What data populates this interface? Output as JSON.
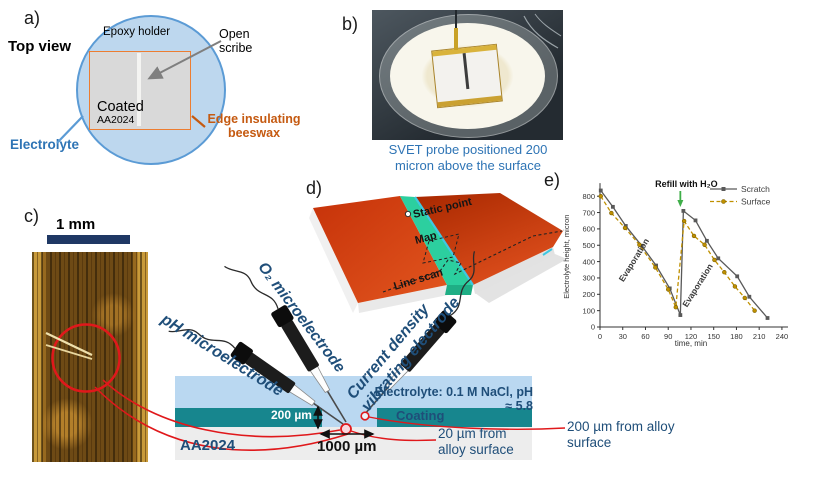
{
  "figure": {
    "panel_a": {
      "label": "a)",
      "title": "Top view",
      "epoxy": "Epoxy holder",
      "scribe": "Open scribe",
      "coated_line1": "Coated",
      "coated_line2": "AA2024",
      "electrolyte": "Electrolyte",
      "beeswax": "Edge insulating beeswax"
    },
    "panel_b": {
      "label": "b)",
      "caption": "SVET probe positioned 200 micron above the surface"
    },
    "panel_c": {
      "label": "c)",
      "scalebar": "1 mm"
    },
    "panel_d": {
      "label": "d)",
      "static_point": "Static point",
      "map": "Map",
      "line_scan": "Line scan"
    },
    "section": {
      "ph": "pH microelectrode",
      "o2": "O₂ microelectrode",
      "vib1": "Current density",
      "vib2": "vibrating electrode",
      "electrolyte": "Electrolyte: 0.1 M NaCl, pH ≈ 5.8",
      "coating": "Coating",
      "h200": "200 µm",
      "w1000": "1000 µm",
      "alloy": "AA2024",
      "d20": "20 µm from alloy surface",
      "d200": "200 µm from alloy surface"
    },
    "panel_e": {
      "label": "e)"
    }
  },
  "colors": {
    "navy_text": "#1f4e79",
    "blue_text": "#2e74b5",
    "orange_text": "#c55a11",
    "coating_teal": "#17868e",
    "electrolyte_blue": "#bad8f1",
    "scratch_gray": "#595959",
    "surface_gold": "#bf9000",
    "refill_arrow_green": "#3fae49",
    "red_marker": "#e0181b"
  },
  "chart_data": {
    "type": "line",
    "title": "",
    "xlabel": "time, min",
    "ylabel": "Electrolyte height, micron",
    "xlim": [
      0,
      248
    ],
    "ylim": [
      0,
      880
    ],
    "xticks": [
      0,
      30,
      60,
      90,
      120,
      150,
      180,
      210,
      240
    ],
    "yticks": [
      0,
      100,
      200,
      300,
      400,
      500,
      600,
      700,
      800
    ],
    "grid": false,
    "legend_position": "top-right",
    "series": [
      {
        "name": "Scratch",
        "color": "#595959",
        "style": "solid",
        "marker": "square",
        "points": [
          [
            1,
            835
          ],
          [
            17,
            735
          ],
          [
            34,
            618
          ],
          [
            55,
            497
          ],
          [
            74,
            376
          ],
          [
            92,
            236
          ],
          [
            106,
            73
          ],
          [
            110,
            710
          ],
          [
            126,
            652
          ],
          [
            141,
            527
          ],
          [
            156,
            420
          ],
          [
            181,
            310
          ],
          [
            197,
            185
          ],
          [
            221,
            55
          ]
        ]
      },
      {
        "name": "Surface",
        "color": "#bf9000",
        "style": "dashed",
        "marker": "circle",
        "points": [
          [
            1,
            800
          ],
          [
            15,
            697
          ],
          [
            33,
            606
          ],
          [
            52,
            503
          ],
          [
            73,
            364
          ],
          [
            90,
            230
          ],
          [
            100,
            121
          ],
          [
            111,
            648
          ],
          [
            124,
            557
          ],
          [
            138,
            503
          ],
          [
            151,
            410
          ],
          [
            164,
            335
          ],
          [
            178,
            248
          ],
          [
            191,
            178
          ],
          [
            204,
            100
          ]
        ]
      }
    ],
    "annotations": {
      "refill_label": {
        "text": "Refill with H₂O",
        "x": 106
      },
      "phase_labels": [
        {
          "text": "Evaporation",
          "x": 48,
          "y": 400,
          "angle": -58
        },
        {
          "text": "Evaporation",
          "x": 132,
          "y": 245,
          "angle": -58
        }
      ]
    }
  }
}
